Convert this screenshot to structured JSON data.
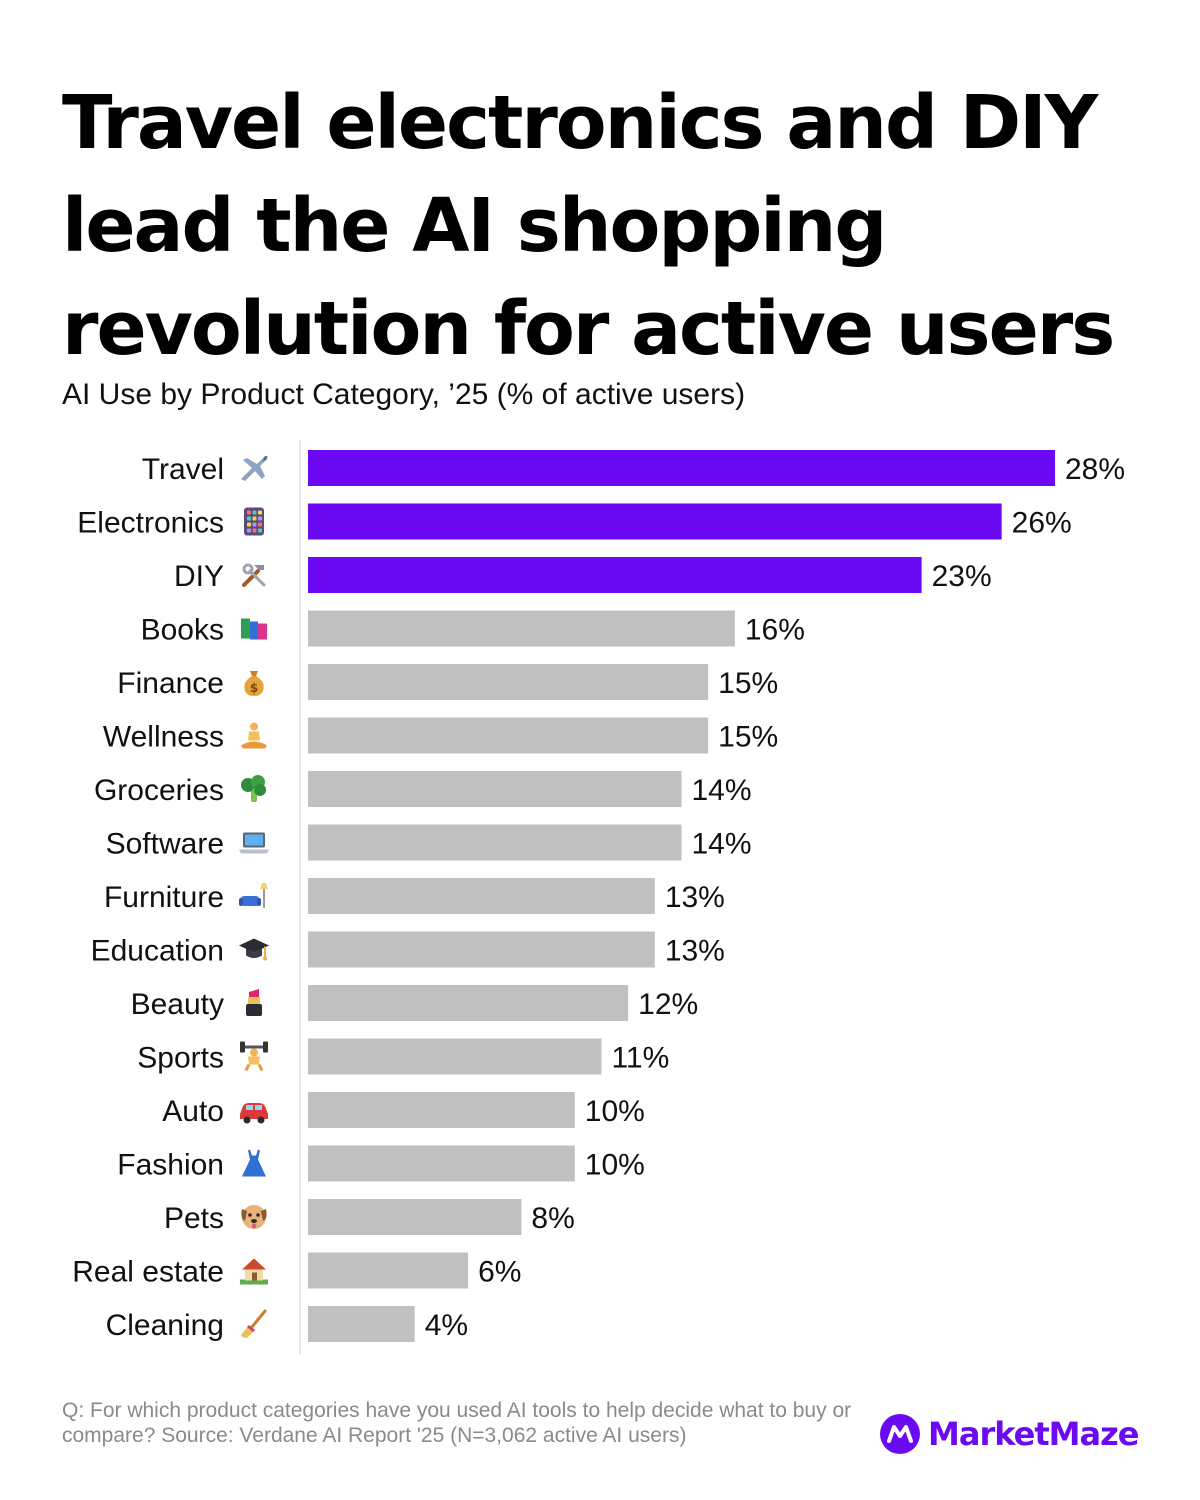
{
  "headline": "Travel electronics and DIY lead the AI shopping revolution for active users",
  "subtitle": "AI Use by Product Category, ’25 (% of active users)",
  "footnote": "Q: For which product categories have you used AI tools to help decide what to buy or compare? Source: Verdane AI Report '25 (N=3,062 active AI users)",
  "brand": {
    "name": "MarketMaze",
    "color": "#6B0AF2"
  },
  "colors": {
    "highlight": "#6B0AF2",
    "default": "#C0C0C0",
    "axis": "#E0E0E0"
  },
  "chart_data": {
    "type": "bar",
    "orientation": "horizontal",
    "title": "AI Use by Product Category, ’25 (% of active users)",
    "categories": [
      "Travel",
      "Electronics",
      "DIY",
      "Books",
      "Finance",
      "Wellness",
      "Groceries",
      "Software",
      "Furniture",
      "Education",
      "Beauty",
      "Sports",
      "Auto",
      "Fashion",
      "Pets",
      "Real estate",
      "Cleaning"
    ],
    "icons": [
      "airplane-icon",
      "calculator-icon",
      "tools-icon",
      "books-icon",
      "money-bag-icon",
      "meditation-icon",
      "broccoli-icon",
      "laptop-icon",
      "couch-lamp-icon",
      "graduation-cap-icon",
      "lipstick-icon",
      "weightlifter-icon",
      "car-icon",
      "dress-icon",
      "dog-icon",
      "house-icon",
      "broom-icon"
    ],
    "values": [
      28,
      26,
      23,
      16,
      15,
      15,
      14,
      14,
      13,
      13,
      12,
      11,
      10,
      10,
      8,
      6,
      4
    ],
    "value_labels": [
      "28%",
      "26%",
      "23%",
      "16%",
      "15%",
      "15%",
      "14%",
      "14%",
      "13%",
      "13%",
      "12%",
      "11%",
      "10%",
      "10%",
      "8%",
      "6%",
      "4%"
    ],
    "highlighted": [
      true,
      true,
      true,
      false,
      false,
      false,
      false,
      false,
      false,
      false,
      false,
      false,
      false,
      false,
      false,
      false,
      false
    ],
    "unit": "%",
    "xlim": [
      0,
      28
    ]
  }
}
